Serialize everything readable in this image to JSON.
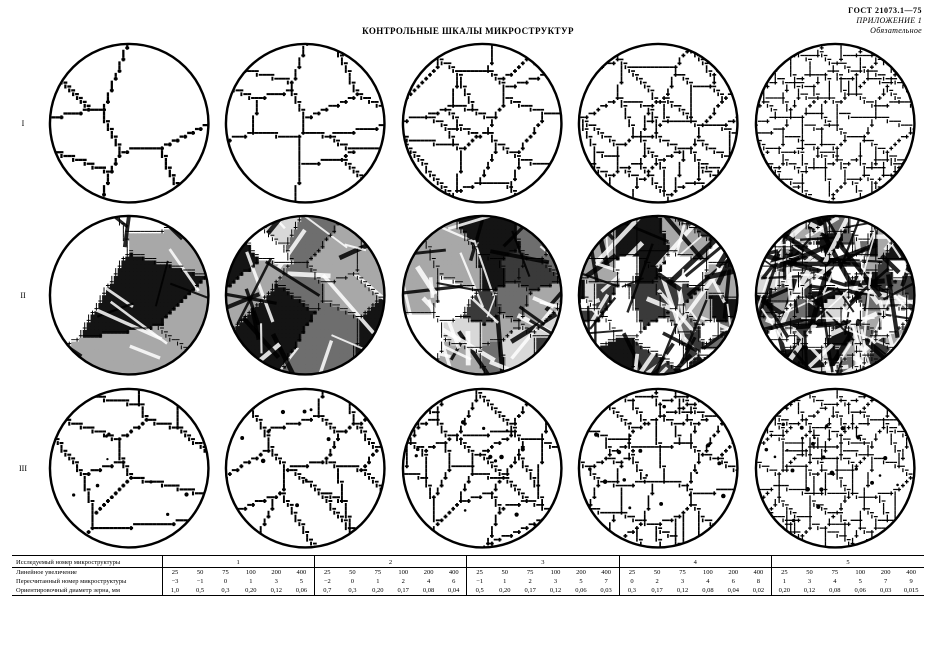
{
  "header": {
    "standard": "ГОСТ 21073.1—75",
    "appendix": "ПРИЛОЖЕНИЕ 1",
    "mandatory": "Обязательное"
  },
  "title": "КОНТРОЛЬНЫЕ ШКАЛЫ МИКРОСТРУКТУР",
  "row_labels": [
    "I",
    "II",
    "III"
  ],
  "table": {
    "header_label": "Исследуемый номер микроструктуры",
    "group_ids": [
      "1",
      "2",
      "3",
      "4",
      "5"
    ],
    "row_labels": [
      "Линейное увеличение",
      "Пересчитанный номер микроструктуры",
      "Ориентировочный диаметр зерна, мм"
    ],
    "groups": [
      [
        [
          "25",
          "50",
          "75",
          "100",
          "200",
          "400"
        ],
        [
          "−3",
          "−1",
          "0",
          "1",
          "3",
          "5"
        ],
        [
          "1,0",
          "0,5",
          "0,3",
          "0,20",
          "0,12",
          "0,06"
        ]
      ],
      [
        [
          "25",
          "50",
          "75",
          "100",
          "200",
          "400"
        ],
        [
          "−2",
          "0",
          "1",
          "2",
          "4",
          "6"
        ],
        [
          "0,7",
          "0,3",
          "0,20",
          "0,17",
          "0,08",
          "0,04"
        ]
      ],
      [
        [
          "25",
          "50",
          "75",
          "100",
          "200",
          "400"
        ],
        [
          "−1",
          "1",
          "2",
          "3",
          "5",
          "7"
        ],
        [
          "0,5",
          "0,20",
          "0,17",
          "0,12",
          "0,06",
          "0,03"
        ]
      ],
      [
        [
          "25",
          "50",
          "75",
          "100",
          "200",
          "400"
        ],
        [
          "0",
          "2",
          "3",
          "4",
          "6",
          "8"
        ],
        [
          "0,3",
          "0,17",
          "0,12",
          "0,08",
          "0,04",
          "0,02"
        ]
      ],
      [
        [
          "25",
          "50",
          "75",
          "100",
          "200",
          "400"
        ],
        [
          "1",
          "3",
          "4",
          "5",
          "7",
          "9"
        ],
        [
          "0,20",
          "0,12",
          "0,08",
          "0,06",
          "0,03",
          "0,015"
        ]
      ]
    ]
  },
  "circles": {
    "stroke": "#000000",
    "stroke_width_outer": 1.5,
    "rows": [
      {
        "style": "outline",
        "seeds": [
          7,
          13,
          22,
          38,
          95
        ],
        "line_w": [
          1.4,
          1.2,
          1.1,
          1.0,
          0.8
        ]
      },
      {
        "style": "shaded",
        "seeds": [
          7,
          12,
          20,
          34,
          70
        ],
        "palette": [
          "#ffffff",
          "#d8d8d8",
          "#a8a8a8",
          "#6e6e6e",
          "#3a3a3a",
          "#141414"
        ]
      },
      {
        "style": "outline_dots",
        "seeds": [
          10,
          16,
          26,
          42,
          85
        ],
        "line_w": [
          1.3,
          1.2,
          1.1,
          1.0,
          0.8
        ],
        "dots": [
          10,
          14,
          18,
          28,
          45
        ]
      }
    ]
  }
}
